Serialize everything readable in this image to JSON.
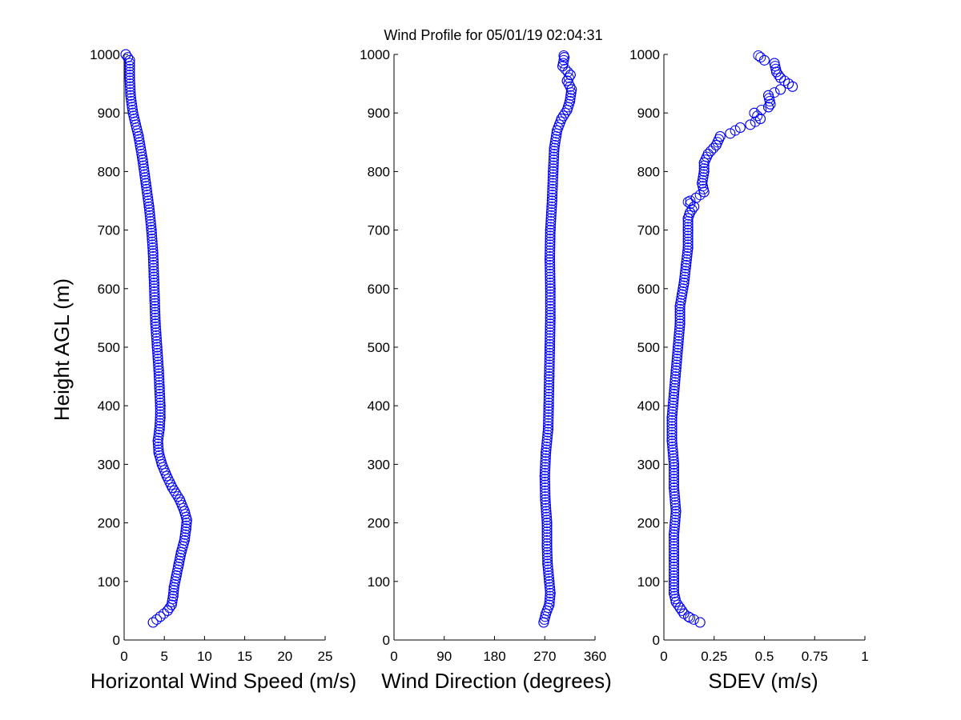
{
  "title": "Wind Profile for  05/01/19 02:04:31",
  "ylabel": "Height AGL (m)",
  "marker_color": "#0000ff",
  "chart_data": [
    {
      "type": "scatter",
      "xlabel": "Horizontal Wind Speed (m/s)",
      "ylabel": "Height AGL (m)",
      "xlim": [
        0,
        25
      ],
      "ylim": [
        0,
        1000
      ],
      "xticks": [
        "0",
        "5",
        "10",
        "15",
        "20",
        "25"
      ],
      "xtick_values": [
        0,
        5,
        10,
        15,
        20,
        25
      ],
      "yticks": [
        "0",
        "100",
        "200",
        "300",
        "400",
        "500",
        "600",
        "700",
        "800",
        "900",
        "1000"
      ],
      "ytick_values": [
        0,
        100,
        200,
        300,
        400,
        500,
        600,
        700,
        800,
        900,
        1000
      ],
      "marker": "open-circle",
      "series": [
        {
          "profile": [
            [
              3.6,
              30
            ],
            [
              4.5,
              40
            ],
            [
              5.4,
              50
            ],
            [
              5.9,
              60
            ],
            [
              6.1,
              75
            ],
            [
              6.2,
              90
            ],
            [
              6.5,
              110
            ],
            [
              6.8,
              130
            ],
            [
              7.1,
              150
            ],
            [
              7.5,
              170
            ],
            [
              7.7,
              190
            ],
            [
              7.8,
              205
            ],
            [
              7.5,
              220
            ],
            [
              6.9,
              240
            ],
            [
              6.0,
              260
            ],
            [
              5.3,
              280
            ],
            [
              4.7,
              300
            ],
            [
              4.3,
              320
            ],
            [
              4.2,
              340
            ],
            [
              4.4,
              360
            ],
            [
              4.5,
              380
            ],
            [
              4.5,
              400
            ],
            [
              4.4,
              430
            ],
            [
              4.3,
              460
            ],
            [
              4.1,
              500
            ],
            [
              3.9,
              540
            ],
            [
              3.8,
              580
            ],
            [
              3.7,
              620
            ],
            [
              3.6,
              660
            ],
            [
              3.4,
              700
            ],
            [
              3.1,
              740
            ],
            [
              2.7,
              780
            ],
            [
              2.3,
              820
            ],
            [
              1.8,
              860
            ],
            [
              1.1,
              900
            ],
            [
              0.8,
              930
            ],
            [
              0.7,
              960
            ],
            [
              0.7,
              990
            ],
            [
              0.2,
              1000
            ]
          ]
        }
      ]
    },
    {
      "type": "scatter",
      "xlabel": "Wind Direction (degrees)",
      "xlim": [
        0,
        360
      ],
      "ylim": [
        0,
        1000
      ],
      "xticks": [
        "0",
        "90",
        "180",
        "270",
        "360"
      ],
      "xtick_values": [
        0,
        90,
        180,
        270,
        360
      ],
      "yticks": [
        "0",
        "100",
        "200",
        "300",
        "400",
        "500",
        "600",
        "700",
        "800",
        "900",
        "1000"
      ],
      "ytick_values": [
        0,
        100,
        200,
        300,
        400,
        500,
        600,
        700,
        800,
        900,
        1000
      ],
      "marker": "open-circle",
      "series": [
        {
          "profile": [
            [
              268,
              30
            ],
            [
              272,
              45
            ],
            [
              278,
              60
            ],
            [
              280,
              80
            ],
            [
              278,
              100
            ],
            [
              275,
              130
            ],
            [
              274,
              160
            ],
            [
              274,
              200
            ],
            [
              271,
              240
            ],
            [
              270,
              280
            ],
            [
              272,
              320
            ],
            [
              276,
              360
            ],
            [
              277,
              400
            ],
            [
              278,
              450
            ],
            [
              279,
              500
            ],
            [
              280,
              550
            ],
            [
              280,
              600
            ],
            [
              279,
              650
            ],
            [
              280,
              700
            ],
            [
              283,
              750
            ],
            [
              285,
              800
            ],
            [
              287,
              840
            ],
            [
              292,
              870
            ],
            [
              300,
              890
            ],
            [
              310,
              905
            ],
            [
              315,
              920
            ],
            [
              318,
              940
            ],
            [
              310,
              955
            ],
            [
              316,
              965
            ],
            [
              302,
              980
            ],
            [
              305,
              995
            ],
            [
              304,
              998
            ]
          ]
        }
      ]
    },
    {
      "type": "scatter",
      "xlabel": "SDEV  (m/s)",
      "xlim": [
        0,
        1
      ],
      "ylim": [
        0,
        1000
      ],
      "xticks": [
        "0",
        "0.25",
        "0.5",
        "0.75",
        "1"
      ],
      "xtick_values": [
        0,
        0.25,
        0.5,
        0.75,
        1
      ],
      "yticks": [
        "0",
        "100",
        "200",
        "300",
        "400",
        "500",
        "600",
        "700",
        "800",
        "900",
        "1000"
      ],
      "ytick_values": [
        0,
        100,
        200,
        300,
        400,
        500,
        600,
        700,
        800,
        900,
        1000
      ],
      "marker": "open-circle",
      "series": [
        {
          "profile": [
            [
              0.18,
              30
            ],
            [
              0.13,
              38
            ],
            [
              0.1,
              45
            ],
            [
              0.08,
              55
            ],
            [
              0.06,
              65
            ],
            [
              0.05,
              80
            ],
            [
              0.05,
              100
            ],
            [
              0.05,
              140
            ],
            [
              0.05,
              180
            ],
            [
              0.06,
              220
            ],
            [
              0.05,
              260
            ],
            [
              0.05,
              300
            ],
            [
              0.04,
              340
            ],
            [
              0.04,
              380
            ],
            [
              0.05,
              420
            ],
            [
              0.06,
              460
            ],
            [
              0.07,
              500
            ],
            [
              0.08,
              540
            ],
            [
              0.08,
              570
            ],
            [
              0.09,
              590
            ],
            [
              0.1,
              610
            ],
            [
              0.11,
              640
            ],
            [
              0.12,
              670
            ],
            [
              0.12,
              700
            ],
            [
              0.12,
              720
            ],
            [
              0.13,
              730
            ],
            [
              0.15,
              740
            ],
            [
              0.12,
              748
            ],
            [
              0.16,
              755
            ],
            [
              0.2,
              765
            ],
            [
              0.19,
              780
            ],
            [
              0.2,
              800
            ],
            [
              0.2,
              815
            ],
            [
              0.22,
              830
            ],
            [
              0.26,
              845
            ],
            [
              0.28,
              860
            ],
            [
              0.33,
              865
            ],
            [
              0.38,
              875
            ],
            [
              0.43,
              880
            ],
            [
              0.48,
              890
            ],
            [
              0.45,
              900
            ],
            [
              0.52,
              910
            ],
            [
              0.53,
              915
            ],
            [
              0.52,
              930
            ],
            [
              0.58,
              940
            ],
            [
              0.64,
              945
            ],
            [
              0.62,
              950
            ],
            [
              0.58,
              960
            ],
            [
              0.56,
              970
            ],
            [
              0.55,
              985
            ],
            [
              0.5,
              990
            ],
            [
              0.47,
              998
            ]
          ]
        }
      ]
    }
  ]
}
